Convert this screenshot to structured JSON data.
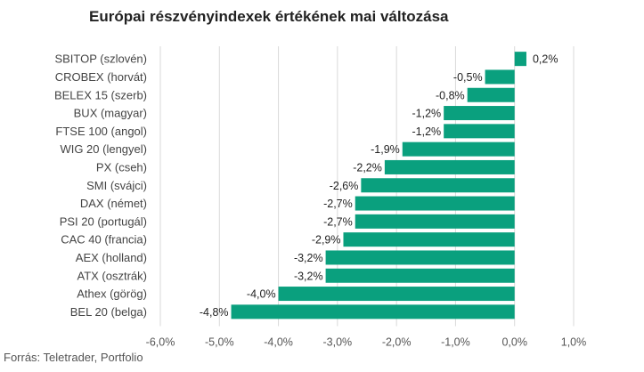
{
  "chart_data": {
    "type": "bar",
    "orientation": "horizontal",
    "title": "Európai részvényindexek értékének mai változása",
    "categories": [
      "SBITOP (szlovén)",
      "CROBEX (horvát)",
      "BELEX 15 (szerb)",
      "BUX (magyar)",
      "FTSE 100 (angol)",
      "WIG 20 (lengyel)",
      "PX (cseh)",
      "SMI (svájci)",
      "DAX (német)",
      "PSI 20 (portugál)",
      "CAC 40 (francia)",
      "AEX (holland)",
      "ATX (osztrák)",
      "Athex (görög)",
      "BEL 20 (belga)"
    ],
    "values": [
      0.2,
      -0.5,
      -0.8,
      -1.2,
      -1.2,
      -1.9,
      -2.2,
      -2.6,
      -2.7,
      -2.7,
      -2.9,
      -3.2,
      -3.2,
      -4.0,
      -4.8
    ],
    "value_labels": [
      "0,2%",
      "-0,5%",
      "-0,8%",
      "-1,2%",
      "-1,2%",
      "-1,9%",
      "-2,2%",
      "-2,6%",
      "-2,7%",
      "-2,7%",
      "-2,9%",
      "-3,2%",
      "-3,2%",
      "-4,0%",
      "-4,8%"
    ],
    "xlim": [
      -6.0,
      1.0
    ],
    "x_ticks": [
      -6.0,
      -5.0,
      -4.0,
      -3.0,
      -2.0,
      -1.0,
      0.0,
      1.0
    ],
    "x_tick_labels": [
      "-6,0%",
      "-5,0%",
      "-4,0%",
      "-3,0%",
      "-2,0%",
      "-1,0%",
      "0,0%",
      "1,0%"
    ],
    "grid": "vertical",
    "legend": "none",
    "bar_color": "#0aa07e",
    "grid_color": "#d9d9d9"
  },
  "source": "Forrás: Teletrader, Portfolio"
}
